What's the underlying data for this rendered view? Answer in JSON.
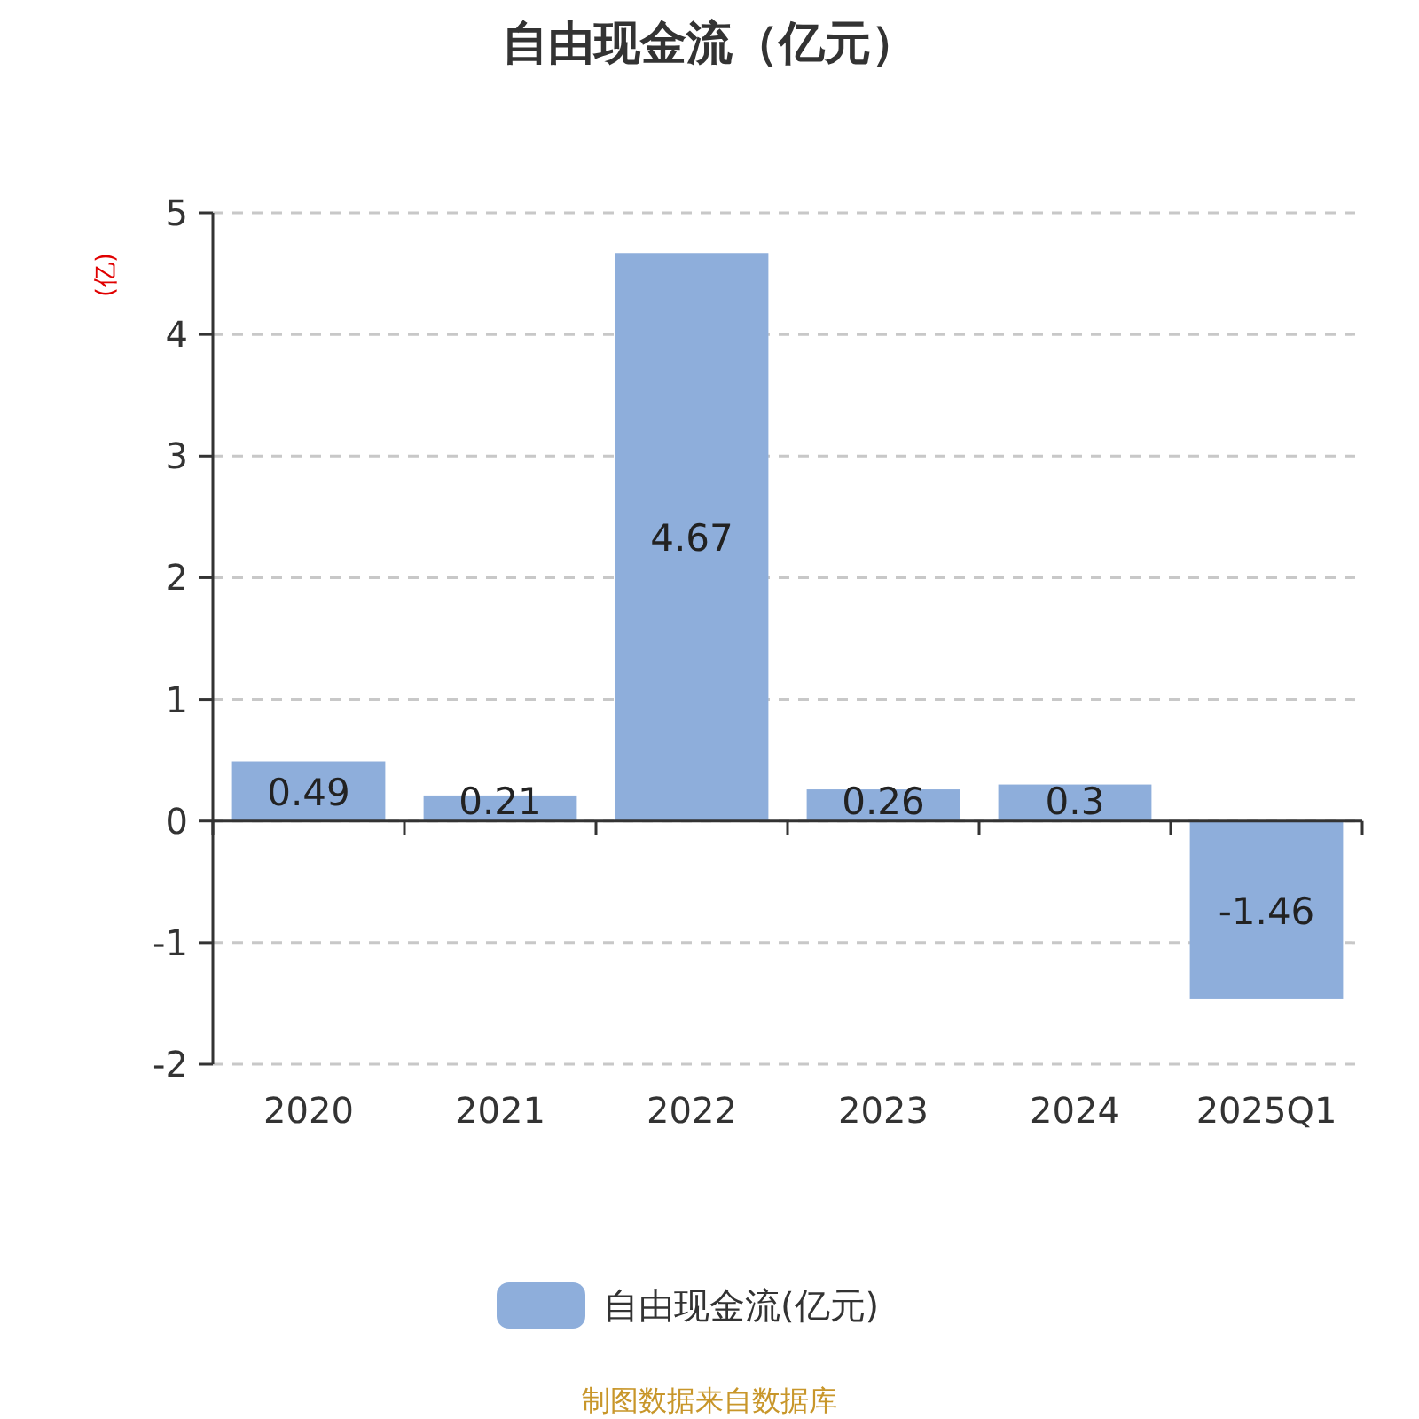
{
  "chart_data": {
    "type": "bar",
    "title": "自由现金流（亿元）",
    "ylabel": "(亿)",
    "categories": [
      "2020",
      "2021",
      "2022",
      "2023",
      "2024",
      "2025Q1"
    ],
    "series": [
      {
        "name": "自由现金流(亿元)",
        "color": "#8eaedb",
        "values": [
          0.49,
          0.21,
          4.67,
          0.26,
          0.3,
          -1.46
        ]
      }
    ],
    "ylim": [
      -2,
      5
    ],
    "yticks": [
      -2,
      -1,
      0,
      1,
      2,
      3,
      4,
      5
    ],
    "grid": "y",
    "legend": "bottom",
    "data_labels": true,
    "annotations": [
      "制图数据来自数据库"
    ]
  }
}
